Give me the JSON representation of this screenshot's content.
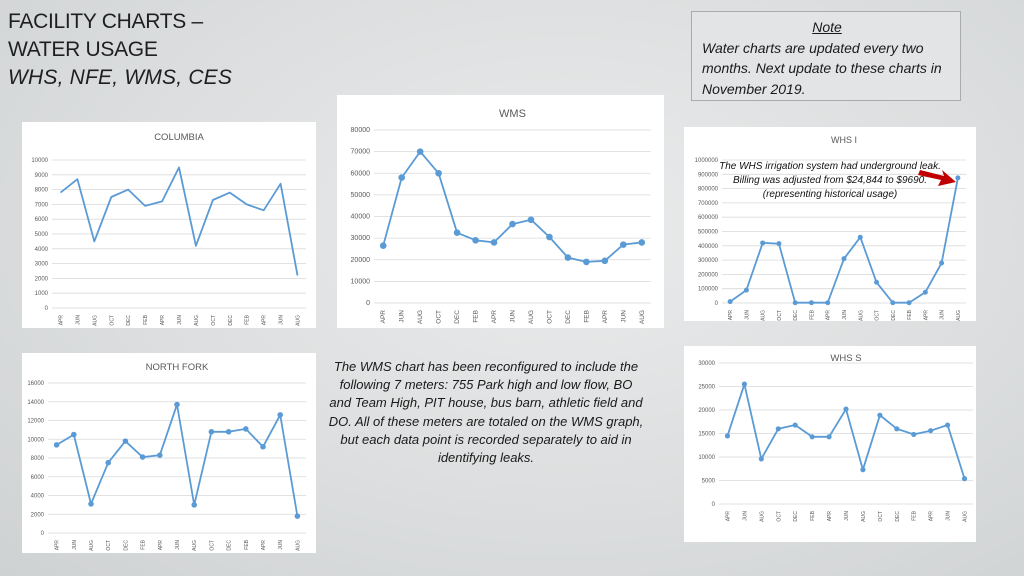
{
  "page": {
    "title_line1": "FACILITY CHARTS –",
    "title_line2": "WATER USAGE",
    "title_line3": "WHS, NFE, WMS, CES"
  },
  "note": {
    "title": "Note",
    "text": "Water charts are updated every two months. Next update to these charts in November 2019."
  },
  "wms_description": "The WMS chart has been reconfigured to include the following 7 meters: 755 Park high and low flow, BO and Team High, PIT house, bus barn, athletic field and DO. All of these meters are totaled on the WMS graph, but each data point is recorded separately to aid in identifying leaks.",
  "whs_i_annotation": "The WHS irrigation system had underground leak. Billing was adjusted from $24,844 to $9690.(representing historical usage)",
  "colors": {
    "line": "#5b9bd5",
    "grid": "#d9d9d9",
    "arrow": "#c00000"
  },
  "chart_data": [
    {
      "id": "columbia",
      "type": "line",
      "title": "COLUMBIA",
      "categories": [
        "APR",
        "JUN",
        "AUG",
        "OCT",
        "DEC",
        "FEB",
        "APR",
        "JUN",
        "AUG",
        "OCT",
        "DEC",
        "FEB",
        "APR",
        "JUN",
        "AUG"
      ],
      "values": [
        7800,
        8700,
        4500,
        7500,
        8000,
        6900,
        7200,
        9500,
        4200,
        7300,
        7800,
        7000,
        6600,
        8400,
        2200
      ],
      "ylim": [
        0,
        10000
      ],
      "yticks": [
        "0",
        "1000",
        "2000",
        "3000",
        "4000",
        "5000",
        "6000",
        "7000",
        "8000",
        "9000",
        "10000"
      ],
      "grid": true,
      "markers": false
    },
    {
      "id": "wms",
      "type": "line",
      "title": "WMS",
      "categories": [
        "APR",
        "JUN",
        "AUG",
        "OCT",
        "DEC",
        "FEB",
        "APR",
        "JUN",
        "AUG",
        "OCT",
        "DEC",
        "FEB",
        "APR",
        "JUN",
        "AUG"
      ],
      "values": [
        26500,
        58000,
        70000,
        60000,
        32500,
        29000,
        28000,
        36500,
        38500,
        30500,
        21000,
        19000,
        19500,
        27000,
        28000
      ],
      "ylim": [
        0,
        80000
      ],
      "yticks": [
        "0",
        "10000",
        "20000",
        "30000",
        "40000",
        "50000",
        "60000",
        "70000",
        "80000"
      ],
      "grid": true,
      "markers": true
    },
    {
      "id": "whs-i",
      "type": "line",
      "title": "WHS I",
      "categories": [
        "APR",
        "JUN",
        "AUG",
        "OCT",
        "DEC",
        "FEB",
        "APR",
        "JUN",
        "AUG",
        "OCT",
        "DEC",
        "FEB",
        "APR",
        "JUN",
        "AUG"
      ],
      "values": [
        10000,
        90000,
        420000,
        415000,
        2000,
        2000,
        2000,
        310000,
        460000,
        145000,
        2000,
        2000,
        75000,
        280000,
        875000
      ],
      "ylim": [
        0,
        1000000
      ],
      "yticks": [
        "0",
        "100000",
        "200000",
        "300000",
        "400000",
        "500000",
        "600000",
        "700000",
        "800000",
        "900000",
        "1000000"
      ],
      "grid": true,
      "markers": true
    },
    {
      "id": "north-fork",
      "type": "line",
      "title": "NORTH FORK",
      "categories": [
        "APR",
        "JUN",
        "AUG",
        "OCT",
        "DEC",
        "FEB",
        "APR",
        "JUN",
        "AUG",
        "OCT",
        "DEC",
        "FEB",
        "APR",
        "JUN",
        "AUG"
      ],
      "values": [
        9400,
        10500,
        3100,
        7500,
        9800,
        8100,
        8300,
        13700,
        3000,
        10800,
        10800,
        11100,
        9200,
        12600,
        1800
      ],
      "ylim": [
        0,
        16000
      ],
      "yticks": [
        "0",
        "2000",
        "4000",
        "6000",
        "8000",
        "10000",
        "12000",
        "14000",
        "16000"
      ],
      "grid": true,
      "markers": true
    },
    {
      "id": "whs-s",
      "type": "line",
      "title": "WHS S",
      "categories": [
        "APR",
        "JUN",
        "AUG",
        "OCT",
        "DEC",
        "FEB",
        "APR",
        "JUN",
        "AUG",
        "OCT",
        "DEC",
        "FEB",
        "APR",
        "JUN",
        "AUG"
      ],
      "values": [
        14500,
        25500,
        9600,
        16000,
        16800,
        14300,
        14300,
        20200,
        7300,
        18900,
        16000,
        14800,
        15600,
        16800,
        5400
      ],
      "ylim": [
        0,
        30000
      ],
      "yticks": [
        "0",
        "5000",
        "10000",
        "15000",
        "20000",
        "25000",
        "30000"
      ],
      "grid": true,
      "markers": true
    }
  ]
}
